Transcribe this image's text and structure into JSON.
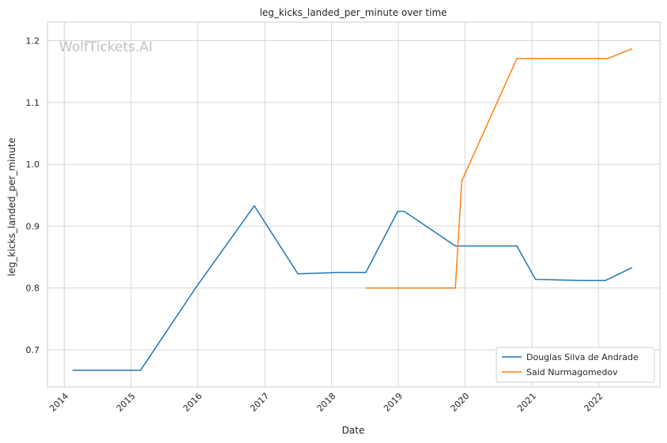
{
  "watermark": "WolfTickets.AI",
  "chart_data": {
    "type": "line",
    "title": "leg_kicks_landed_per_minute over time",
    "xlabel": "Date",
    "ylabel": "leg_kicks_landed_per_minute",
    "xlim": [
      "2013-10-01",
      "2022-12-01"
    ],
    "ylim": [
      0.64,
      1.23
    ],
    "x_ticks": [
      "2014",
      "2015",
      "2016",
      "2017",
      "2018",
      "2019",
      "2020",
      "2021",
      "2022"
    ],
    "y_ticks": [
      "0.7",
      "0.8",
      "0.9",
      "1.0",
      "1.1",
      "1.2"
    ],
    "grid": true,
    "legend_position": "lower-right",
    "series": [
      {
        "name": "Douglas Silva de Andrade",
        "color": "#1f77b4",
        "points": [
          {
            "x": "2014-02-15",
            "y": 0.667
          },
          {
            "x": "2015-02-22",
            "y": 0.667
          },
          {
            "x": "2015-12-20",
            "y": 0.8
          },
          {
            "x": "2016-11-05",
            "y": 0.933
          },
          {
            "x": "2017-07-01",
            "y": 0.823
          },
          {
            "x": "2018-02-01",
            "y": 0.825
          },
          {
            "x": "2018-07-07",
            "y": 0.825
          },
          {
            "x": "2018-12-29",
            "y": 0.924
          },
          {
            "x": "2019-02-02",
            "y": 0.924
          },
          {
            "x": "2019-11-09",
            "y": 0.868
          },
          {
            "x": "2020-10-10",
            "y": 0.868
          },
          {
            "x": "2021-01-20",
            "y": 0.814
          },
          {
            "x": "2021-09-25",
            "y": 0.812
          },
          {
            "x": "2022-02-05",
            "y": 0.812
          },
          {
            "x": "2022-07-02",
            "y": 0.833
          }
        ]
      },
      {
        "name": "Said Nurmagomedov",
        "color": "#ff7f0e",
        "points": [
          {
            "x": "2018-07-07",
            "y": 0.8
          },
          {
            "x": "2019-11-09",
            "y": 0.8
          },
          {
            "x": "2019-12-14",
            "y": 0.973
          },
          {
            "x": "2020-10-10",
            "y": 1.171
          },
          {
            "x": "2021-09-04",
            "y": 1.171
          },
          {
            "x": "2022-02-19",
            "y": 1.171
          },
          {
            "x": "2022-07-02",
            "y": 1.187
          }
        ]
      }
    ]
  }
}
